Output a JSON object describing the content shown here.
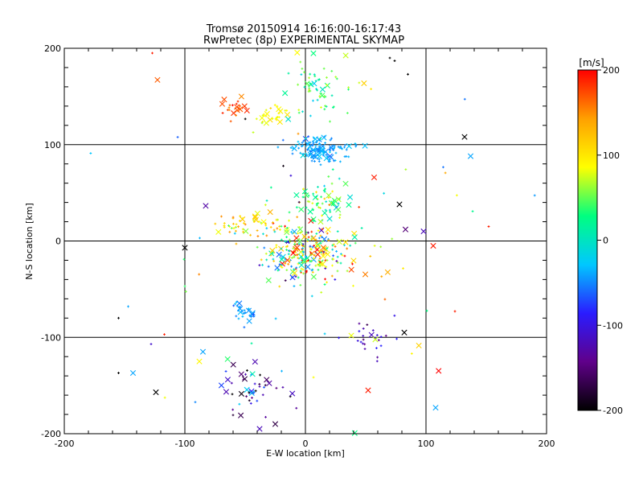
{
  "chart_data": {
    "type": "scatter",
    "title": "Tromsø 20150914 16:16:00-16:17:43",
    "subtitle": "RwPretec (8p) EXPERIMENTAL SKYMAP",
    "xlabel": "E-W location [km]",
    "ylabel": "N-S location [km]",
    "xlim": [
      -200,
      200
    ],
    "ylim": [
      -200,
      200
    ],
    "x_ticks": [
      -200,
      -100,
      0,
      100,
      200
    ],
    "y_ticks": [
      -200,
      -100,
      0,
      100,
      200
    ],
    "grid": true,
    "colorbar": {
      "unit": "[m/s]",
      "range": [
        -200,
        200
      ],
      "ticks": [
        200,
        100,
        0,
        -100,
        -200
      ],
      "colors": [
        "#000000",
        "#60008a",
        "#2a1cff",
        "#00c8ff",
        "#00ff80",
        "#ffff00",
        "#ffa000",
        "#ff0000"
      ]
    },
    "clusters": [
      {
        "cx": 0,
        "cy": -10,
        "sx": 18,
        "sy": 16,
        "n": 260,
        "vmean": 60,
        "vspread": 140
      },
      {
        "cx": 10,
        "cy": 95,
        "sx": 14,
        "sy": 7,
        "n": 140,
        "vmean": -40,
        "vspread": 15
      },
      {
        "cx": 12,
        "cy": 160,
        "sx": 12,
        "sy": 20,
        "n": 60,
        "vmean": 30,
        "vspread": 60
      },
      {
        "cx": -25,
        "cy": 130,
        "sx": 7,
        "sy": 6,
        "n": 30,
        "vmean": 90,
        "vspread": 15
      },
      {
        "cx": -60,
        "cy": 138,
        "sx": 5,
        "sy": 6,
        "n": 20,
        "vmean": 170,
        "vspread": 20
      },
      {
        "cx": 15,
        "cy": 40,
        "sx": 10,
        "sy": 8,
        "n": 60,
        "vmean": 40,
        "vspread": 50
      },
      {
        "cx": -45,
        "cy": 18,
        "sx": 14,
        "sy": 7,
        "n": 50,
        "vmean": 110,
        "vspread": 40
      },
      {
        "cx": -50,
        "cy": -75,
        "sx": 5,
        "sy": 8,
        "n": 30,
        "vmean": -45,
        "vspread": 15
      },
      {
        "cx": -45,
        "cy": -148,
        "sx": 14,
        "sy": 14,
        "n": 45,
        "vmean": -120,
        "vspread": 120
      },
      {
        "cx": 55,
        "cy": -100,
        "sx": 10,
        "sy": 10,
        "n": 25,
        "vmean": -110,
        "vspread": 40
      },
      {
        "cx": 10,
        "cy": 0,
        "sx": 80,
        "sy": 80,
        "n": 90,
        "vmean": 40,
        "vspread": 160
      }
    ],
    "points": [
      {
        "x": 132,
        "y": 108,
        "v": -200,
        "m": "x"
      },
      {
        "x": 137,
        "y": 88,
        "v": -40,
        "m": "x"
      },
      {
        "x": 106,
        "y": -5,
        "v": 190,
        "m": "x"
      },
      {
        "x": 98,
        "y": 10,
        "v": -120,
        "m": "x"
      },
      {
        "x": 82,
        "y": -95,
        "v": -200,
        "m": "x"
      },
      {
        "x": 108,
        "y": -173,
        "v": -40,
        "m": "x"
      },
      {
        "x": 52,
        "y": -155,
        "v": 190,
        "m": "x"
      },
      {
        "x": -124,
        "y": -157,
        "v": -200,
        "m": "x"
      },
      {
        "x": -100,
        "y": -7,
        "v": -200,
        "m": "x"
      },
      {
        "x": -143,
        "y": -137,
        "v": -40,
        "m": "x"
      },
      {
        "x": -85,
        "y": -115,
        "v": -40,
        "m": "x"
      },
      {
        "x": -38,
        "y": -195,
        "v": -120,
        "m": "x"
      },
      {
        "x": -25,
        "y": -190,
        "v": -170,
        "m": "x"
      },
      {
        "x": -88,
        "y": -125,
        "v": 90,
        "m": "x"
      },
      {
        "x": 78,
        "y": 38,
        "v": -200,
        "m": "x"
      },
      {
        "x": 57,
        "y": 66,
        "v": 190,
        "m": "x"
      },
      {
        "x": 83,
        "y": 12,
        "v": -150,
        "m": "x"
      },
      {
        "x": 70,
        "y": 190,
        "v": -200,
        "m": "+"
      },
      {
        "x": 74,
        "y": 187,
        "v": -200,
        "m": "+"
      },
      {
        "x": 85,
        "y": 173,
        "v": -200,
        "m": "+"
      },
      {
        "x": -127,
        "y": 195,
        "v": 190,
        "m": "+"
      },
      {
        "x": 152,
        "y": 15,
        "v": 190,
        "m": "+"
      },
      {
        "x": 124,
        "y": -73,
        "v": 190,
        "m": "+"
      },
      {
        "x": -155,
        "y": -80,
        "v": -200,
        "m": "+"
      },
      {
        "x": -155,
        "y": -137,
        "v": -200,
        "m": "+"
      },
      {
        "x": -117,
        "y": -97,
        "v": 190,
        "m": "+"
      },
      {
        "x": -147,
        "y": -68,
        "v": -40,
        "m": "+"
      },
      {
        "x": -128,
        "y": -107,
        "v": -110,
        "m": "+"
      },
      {
        "x": -100,
        "y": -47,
        "v": 40,
        "m": "+"
      }
    ]
  }
}
